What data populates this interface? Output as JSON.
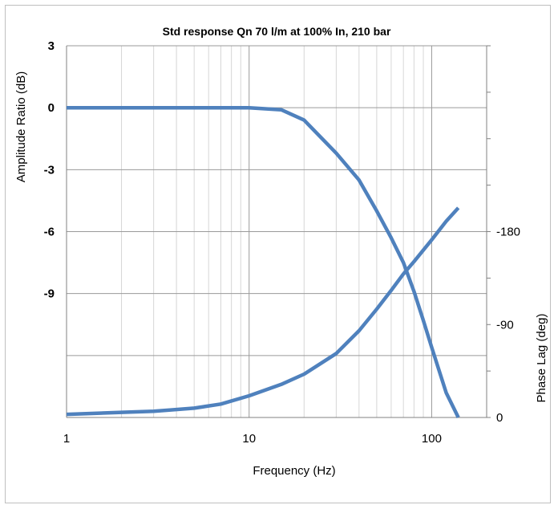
{
  "chart_data": {
    "type": "line",
    "title": "Std response Qn 70 l/m at 100% In, 210 bar",
    "xlabel": "Frequency (Hz)",
    "ylabel": "Amplitude Ratio (dB)",
    "y2label": "Phase Lag (deg)",
    "x_scale": "log",
    "xlim": [
      1,
      200
    ],
    "x_ticks": [
      "1",
      "10",
      "100"
    ],
    "ylim": [
      -15,
      3
    ],
    "y_ticks": [
      "3",
      "0",
      "-3",
      "-6",
      "-9"
    ],
    "y_tick_values": [
      3,
      0,
      -3,
      -6,
      -9
    ],
    "y2lim": [
      0,
      360
    ],
    "y2_ticks": [
      "-180",
      "-90",
      "0"
    ],
    "y2_tick_values": [
      180,
      90,
      0
    ],
    "grid": true,
    "line_color": "#4f81bd",
    "series": [
      {
        "axis": "left",
        "x": [
          1,
          2,
          3,
          5,
          7,
          10,
          15,
          20,
          30,
          40,
          50,
          60,
          70,
          80,
          90,
          100,
          120,
          140
        ],
        "y": [
          0,
          0,
          0,
          0,
          0,
          0,
          -0.1,
          -0.6,
          -2.2,
          -3.5,
          -5.0,
          -6.3,
          -7.5,
          -8.9,
          -10.3,
          -11.6,
          -13.8,
          -15.0
        ]
      },
      {
        "axis": "right",
        "x": [
          1,
          2,
          3,
          5,
          7,
          10,
          15,
          20,
          30,
          40,
          50,
          60,
          70,
          80,
          90,
          100,
          120,
          140
        ],
        "y": [
          3,
          5,
          6,
          9,
          13,
          21,
          32,
          42,
          62,
          84,
          105,
          123,
          139,
          151,
          162,
          172,
          190,
          203
        ]
      }
    ]
  }
}
